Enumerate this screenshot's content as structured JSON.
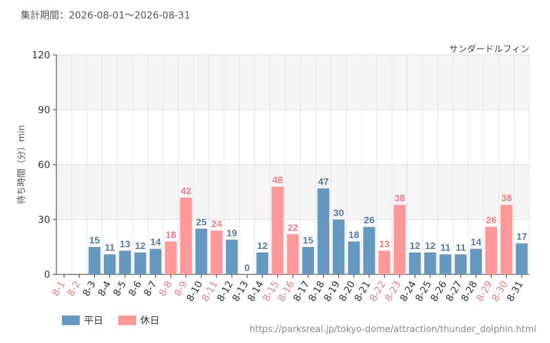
{
  "header": {
    "period_label": "集計期間：2026-08-01〜2026-08-31",
    "attraction_name": "サンダードルフィン"
  },
  "footer": {
    "source_url": "https://parksreal.jp/tokyo-dome/attraction/thunder_dolphin.html"
  },
  "colors": {
    "weekday": "#6699c0",
    "holiday": "#ff9999",
    "weekday_label": "#4f7ba8",
    "holiday_label": "#ef7f7f"
  },
  "chart_data": {
    "type": "bar",
    "ylabel": "待ち時間（分）min",
    "ylim": [
      0,
      120
    ],
    "yticks": [
      0,
      30,
      60,
      90,
      120
    ],
    "grid": true,
    "legend_position": "bottom-left",
    "series": [
      {
        "name": "平日",
        "color": "#6699c0"
      },
      {
        "name": "休日",
        "color": "#ff9999"
      }
    ],
    "categories": [
      "8-1",
      "8-2",
      "8-3",
      "8-4",
      "8-5",
      "8-6",
      "8-7",
      "8-8",
      "8-9",
      "8-10",
      "8-11",
      "8-12",
      "8-13",
      "8-14",
      "8-15",
      "8-16",
      "8-17",
      "8-18",
      "8-19",
      "8-20",
      "8-21",
      "8-22",
      "8-23",
      "8-24",
      "8-25",
      "8-26",
      "8-27",
      "8-28",
      "8-29",
      "8-30",
      "8-31"
    ],
    "values": [
      null,
      null,
      15,
      11,
      13,
      12,
      14,
      18,
      42,
      25,
      24,
      19,
      0,
      12,
      48,
      22,
      15,
      47,
      30,
      18,
      26,
      13,
      38,
      12,
      12,
      11,
      11,
      14,
      26,
      38,
      17
    ],
    "day_types": [
      "holiday",
      "holiday",
      "weekday",
      "weekday",
      "weekday",
      "weekday",
      "weekday",
      "holiday",
      "holiday",
      "weekday",
      "holiday",
      "weekday",
      "weekday",
      "weekday",
      "holiday",
      "holiday",
      "weekday",
      "weekday",
      "weekday",
      "weekday",
      "weekday",
      "holiday",
      "holiday",
      "weekday",
      "weekday",
      "weekday",
      "weekday",
      "weekday",
      "holiday",
      "holiday",
      "weekday"
    ]
  }
}
